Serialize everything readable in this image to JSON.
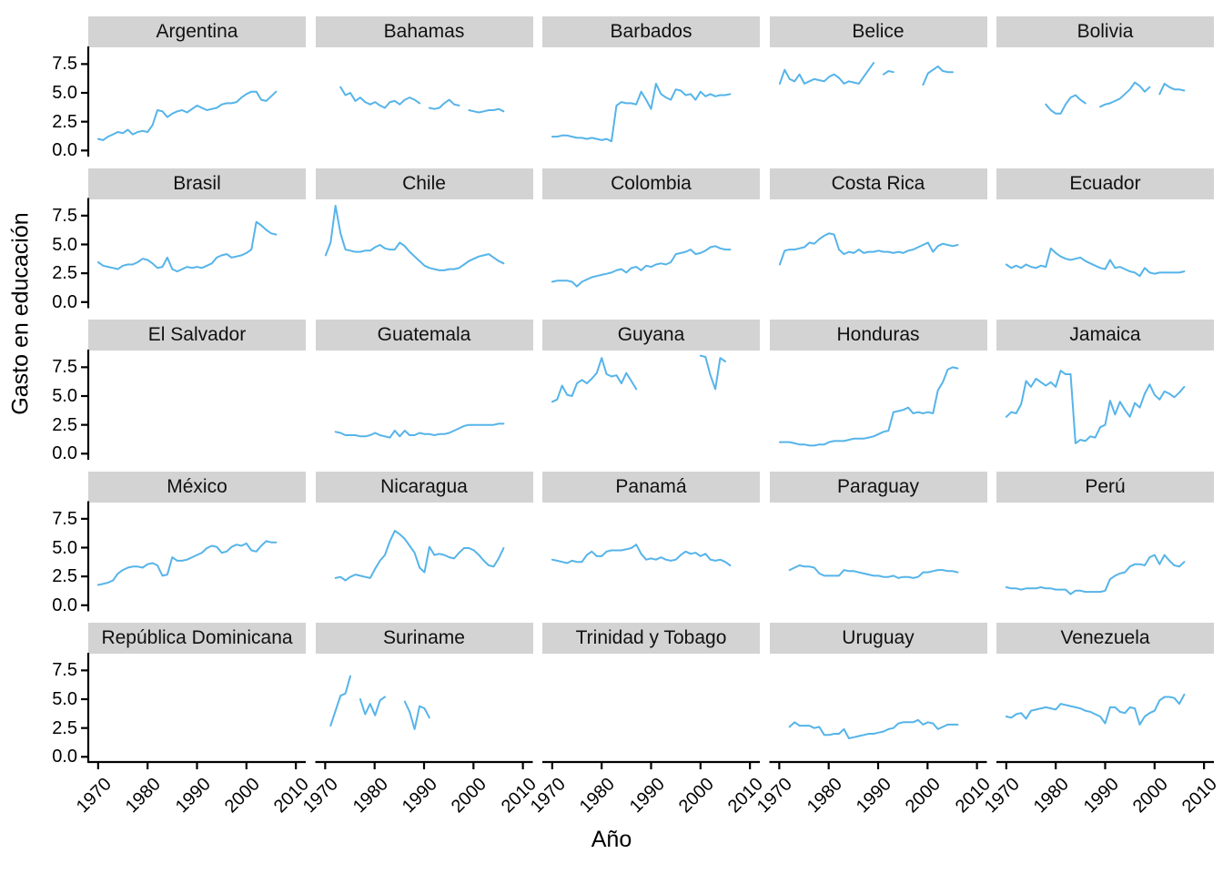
{
  "figure": {
    "y_axis_title": "Gasto en educación",
    "x_axis_title": "Año"
  },
  "chart_data": {
    "type": "line",
    "title": "",
    "xlabel": "Año",
    "ylabel": "Gasto en educación",
    "facet_layout": {
      "rows": 5,
      "cols": 5
    },
    "grid": false,
    "legend": "none",
    "xlim": [
      1968,
      2012
    ],
    "ylim": [
      -0.45,
      8.95
    ],
    "x_ticks": [
      1970,
      1980,
      1990,
      2000,
      2010
    ],
    "x_tick_labels": [
      "1970",
      "1980",
      "1990",
      "2000",
      "2010"
    ],
    "y_ticks": [
      0.0,
      2.5,
      5.0,
      7.5
    ],
    "y_tick_labels": [
      "0.0",
      "2.5",
      "5.0",
      "7.5"
    ],
    "line_color": "#56B4E9",
    "strip_bg": "#D3D3D3",
    "axis_color": "#000000",
    "facets": [
      {
        "label": "Argentina",
        "start_year": 1970,
        "values": [
          1.0,
          0.9,
          1.2,
          1.4,
          1.6,
          1.5,
          1.8,
          1.4,
          1.6,
          1.7,
          1.6,
          2.2,
          3.5,
          3.4,
          2.9,
          3.2,
          3.4,
          3.5,
          3.3,
          3.6,
          3.9,
          3.7,
          3.5,
          3.6,
          3.7,
          4.0,
          4.1,
          4.1,
          4.2,
          4.6,
          4.9,
          5.1,
          5.1,
          4.4,
          4.3,
          4.7,
          5.1
        ]
      },
      {
        "label": "Bahamas",
        "start_year": 1973,
        "values": [
          5.5,
          4.8,
          5.0,
          4.3,
          4.6,
          4.2,
          4.0,
          4.2,
          3.9,
          3.7,
          4.2,
          4.3,
          4.0,
          4.4,
          4.6,
          4.4,
          4.1,
          null,
          3.7,
          3.6,
          3.7,
          4.1,
          4.4,
          4.0,
          3.9,
          null,
          3.5,
          3.4,
          3.3,
          3.4,
          3.5,
          3.5,
          3.6,
          3.4
        ]
      },
      {
        "label": "Barbados",
        "start_year": 1970,
        "values": [
          1.2,
          1.2,
          1.3,
          1.3,
          1.2,
          1.1,
          1.1,
          1.0,
          1.1,
          1.0,
          0.9,
          1.0,
          0.8,
          3.9,
          4.2,
          4.1,
          4.1,
          4.0,
          5.1,
          4.4,
          3.6,
          5.8,
          4.9,
          4.6,
          4.4,
          5.3,
          5.2,
          4.8,
          4.9,
          4.4,
          5.1,
          4.7,
          4.9,
          4.7,
          4.8,
          4.8,
          4.9
        ]
      },
      {
        "label": "Belice",
        "start_year": 1970,
        "values": [
          5.8,
          7.0,
          6.2,
          6.0,
          6.6,
          5.8,
          6.0,
          6.2,
          6.1,
          6.0,
          6.4,
          6.6,
          6.3,
          5.8,
          6.0,
          5.9,
          5.8,
          6.4,
          7.0,
          7.6,
          null,
          6.6,
          6.9,
          6.8,
          null,
          null,
          null,
          null,
          null,
          5.7,
          6.7,
          7.0,
          7.3,
          6.9,
          6.8,
          6.8
        ]
      },
      {
        "label": "Bolivia",
        "start_year": 1978,
        "values": [
          4.0,
          3.5,
          3.2,
          3.2,
          4.0,
          4.6,
          4.8,
          4.4,
          4.1,
          null,
          null,
          3.8,
          4.0,
          4.1,
          4.3,
          4.5,
          4.9,
          5.3,
          5.9,
          5.6,
          5.1,
          5.5,
          null,
          4.9,
          5.8,
          5.5,
          5.3,
          5.3,
          5.2
        ]
      },
      {
        "label": "Brasil",
        "start_year": 1970,
        "values": [
          3.5,
          3.2,
          3.1,
          3.0,
          2.9,
          3.2,
          3.3,
          3.3,
          3.5,
          3.8,
          3.7,
          3.4,
          3.0,
          3.1,
          3.9,
          2.9,
          2.7,
          2.9,
          3.1,
          3.0,
          3.1,
          3.0,
          3.2,
          3.4,
          3.9,
          4.1,
          4.2,
          3.9,
          4.0,
          4.1,
          4.3,
          4.6,
          7.0,
          6.7,
          6.3,
          6.0,
          5.9
        ]
      },
      {
        "label": "Chile",
        "start_year": 1970,
        "values": [
          4.1,
          5.2,
          8.4,
          6.0,
          4.6,
          4.5,
          4.4,
          4.4,
          4.5,
          4.5,
          4.8,
          5.0,
          4.7,
          4.6,
          4.6,
          5.2,
          4.9,
          4.4,
          4.0,
          3.6,
          3.2,
          3.0,
          2.9,
          2.8,
          2.8,
          2.9,
          2.9,
          3.0,
          3.3,
          3.6,
          3.8,
          4.0,
          4.1,
          4.2,
          3.9,
          3.6,
          3.4
        ]
      },
      {
        "label": "Colombia",
        "start_year": 1970,
        "values": [
          1.8,
          1.9,
          1.9,
          1.9,
          1.8,
          1.4,
          1.8,
          2.0,
          2.2,
          2.3,
          2.4,
          2.5,
          2.6,
          2.8,
          2.9,
          2.6,
          3.0,
          3.1,
          2.8,
          3.2,
          3.1,
          3.3,
          3.4,
          3.3,
          3.5,
          4.2,
          4.3,
          4.4,
          4.6,
          4.2,
          4.3,
          4.5,
          4.8,
          4.9,
          4.7,
          4.6,
          4.6
        ]
      },
      {
        "label": "Costa Rica",
        "start_year": 1970,
        "values": [
          3.3,
          4.5,
          4.6,
          4.6,
          4.7,
          4.8,
          5.2,
          5.1,
          5.5,
          5.8,
          6.0,
          5.9,
          4.6,
          4.2,
          4.4,
          4.3,
          4.6,
          4.3,
          4.4,
          4.4,
          4.5,
          4.4,
          4.4,
          4.3,
          4.4,
          4.3,
          4.5,
          4.6,
          4.8,
          5.0,
          5.2,
          4.4,
          4.9,
          5.1,
          5.0,
          4.9,
          5.0
        ]
      },
      {
        "label": "Ecuador",
        "start_year": 1970,
        "values": [
          3.3,
          3.0,
          3.2,
          3.0,
          3.3,
          3.1,
          3.0,
          3.2,
          3.1,
          4.7,
          4.3,
          4.0,
          3.8,
          3.7,
          3.8,
          3.9,
          3.6,
          3.4,
          3.2,
          3.0,
          2.9,
          3.7,
          3.0,
          3.1,
          2.9,
          2.7,
          2.6,
          2.3,
          3.0,
          2.6,
          2.5,
          2.6,
          2.6,
          2.6,
          2.6,
          2.6,
          2.7
        ]
      },
      {
        "label": "El Salvador",
        "start_year": null,
        "values": []
      },
      {
        "label": "Guatemala",
        "start_year": 1972,
        "values": [
          1.9,
          1.8,
          1.6,
          1.6,
          1.6,
          1.5,
          1.5,
          1.6,
          1.8,
          1.6,
          1.5,
          1.4,
          2.0,
          1.5,
          2.0,
          1.6,
          1.6,
          1.8,
          1.7,
          1.7,
          1.6,
          1.7,
          1.7,
          1.8,
          2.0,
          2.2,
          2.4,
          2.5,
          2.5,
          2.5,
          2.5,
          2.5,
          2.5,
          2.6,
          2.6
        ]
      },
      {
        "label": "Guyana",
        "start_year": 1970,
        "values": [
          4.5,
          4.7,
          5.9,
          5.1,
          5.0,
          6.1,
          6.4,
          6.1,
          6.5,
          7.0,
          8.3,
          6.9,
          6.7,
          6.8,
          6.1,
          7.0,
          6.3,
          5.6,
          null,
          null,
          null,
          null,
          null,
          null,
          null,
          null,
          null,
          null,
          null,
          null,
          8.5,
          8.4,
          6.8,
          5.6,
          8.3,
          8.0
        ]
      },
      {
        "label": "Honduras",
        "start_year": 1970,
        "values": [
          1.0,
          1.0,
          1.0,
          0.9,
          0.8,
          0.8,
          0.7,
          0.7,
          0.8,
          0.8,
          1.0,
          1.1,
          1.1,
          1.1,
          1.2,
          1.3,
          1.3,
          1.3,
          1.4,
          1.5,
          1.7,
          1.9,
          2.0,
          3.6,
          3.7,
          3.8,
          4.0,
          3.5,
          3.6,
          3.5,
          3.6,
          3.5,
          5.5,
          6.2,
          7.3,
          7.5,
          7.4
        ]
      },
      {
        "label": "Jamaica",
        "start_year": 1970,
        "values": [
          3.2,
          3.6,
          3.5,
          4.3,
          6.3,
          5.8,
          6.5,
          6.2,
          5.9,
          6.2,
          5.8,
          7.2,
          6.9,
          6.9,
          0.9,
          1.2,
          1.1,
          1.5,
          1.4,
          2.3,
          2.5,
          4.6,
          3.4,
          4.5,
          3.8,
          3.2,
          4.4,
          4.0,
          5.2,
          6.0,
          5.1,
          4.7,
          5.4,
          5.2,
          4.9,
          5.3,
          5.8
        ]
      },
      {
        "label": "México",
        "start_year": 1970,
        "values": [
          1.8,
          1.9,
          2.0,
          2.2,
          2.8,
          3.1,
          3.3,
          3.4,
          3.4,
          3.3,
          3.6,
          3.7,
          3.5,
          2.6,
          2.7,
          4.2,
          3.9,
          3.9,
          4.0,
          4.2,
          4.4,
          4.6,
          5.0,
          5.2,
          5.1,
          4.6,
          4.7,
          5.1,
          5.3,
          5.2,
          5.4,
          4.8,
          4.7,
          5.2,
          5.6,
          5.5,
          5.5
        ]
      },
      {
        "label": "Nicaragua",
        "start_year": 1972,
        "values": [
          2.4,
          2.5,
          2.2,
          2.5,
          2.7,
          2.6,
          2.5,
          2.4,
          3.2,
          3.9,
          4.4,
          5.6,
          6.5,
          6.2,
          5.8,
          5.2,
          4.6,
          3.3,
          2.9,
          5.1,
          4.4,
          4.5,
          4.4,
          4.2,
          4.1,
          4.6,
          5.0,
          5.0,
          4.8,
          4.4,
          3.9,
          3.5,
          3.4,
          4.1,
          5.0
        ]
      },
      {
        "label": "Panamá",
        "start_year": 1970,
        "values": [
          4.0,
          3.9,
          3.8,
          3.7,
          3.9,
          3.8,
          3.8,
          4.4,
          4.7,
          4.3,
          4.3,
          4.7,
          4.8,
          4.8,
          4.8,
          4.9,
          5.0,
          5.3,
          4.5,
          4.0,
          4.1,
          4.0,
          4.2,
          4.0,
          3.9,
          4.0,
          4.4,
          4.7,
          4.5,
          4.6,
          4.3,
          4.5,
          4.0,
          3.9,
          4.0,
          3.8,
          3.5
        ]
      },
      {
        "label": "Paraguay",
        "start_year": 1972,
        "values": [
          3.1,
          3.3,
          3.5,
          3.4,
          3.4,
          3.3,
          2.8,
          2.6,
          2.6,
          2.6,
          2.6,
          3.1,
          3.0,
          3.0,
          2.9,
          2.8,
          2.7,
          2.6,
          2.6,
          2.5,
          2.5,
          2.6,
          2.4,
          2.5,
          2.5,
          2.4,
          2.5,
          2.9,
          2.9,
          3.0,
          3.1,
          3.1,
          3.0,
          3.0,
          2.9
        ]
      },
      {
        "label": "Perú",
        "start_year": 1970,
        "values": [
          1.6,
          1.5,
          1.5,
          1.4,
          1.5,
          1.5,
          1.5,
          1.6,
          1.5,
          1.5,
          1.4,
          1.4,
          1.4,
          1.0,
          1.3,
          1.3,
          1.2,
          1.2,
          1.2,
          1.2,
          1.3,
          2.3,
          2.6,
          2.8,
          2.9,
          3.4,
          3.6,
          3.6,
          3.5,
          4.2,
          4.4,
          3.6,
          4.4,
          3.9,
          3.5,
          3.4,
          3.8
        ]
      },
      {
        "label": "República Dominicana",
        "start_year": null,
        "values": []
      },
      {
        "label": "Suriname",
        "start_year": 1971,
        "values": [
          2.7,
          4.0,
          5.3,
          5.5,
          7.0,
          null,
          5.0,
          3.7,
          4.6,
          3.6,
          4.9,
          5.2,
          null,
          null,
          null,
          4.8,
          3.9,
          2.4,
          4.4,
          4.2,
          3.4
        ]
      },
      {
        "label": "Trinidad y Tobago",
        "start_year": null,
        "values": []
      },
      {
        "label": "Uruguay",
        "start_year": 1972,
        "values": [
          2.6,
          3.0,
          2.7,
          2.7,
          2.7,
          2.5,
          2.6,
          1.9,
          1.9,
          2.0,
          2.0,
          2.4,
          1.6,
          1.7,
          1.8,
          1.9,
          2.0,
          2.0,
          2.1,
          2.2,
          2.4,
          2.5,
          2.9,
          3.0,
          3.0,
          3.0,
          3.2,
          2.8,
          3.0,
          2.9,
          2.4,
          2.6,
          2.8,
          2.8,
          2.8
        ]
      },
      {
        "label": "Venezuela",
        "start_year": 1970,
        "values": [
          3.5,
          3.4,
          3.7,
          3.8,
          3.3,
          4.0,
          4.1,
          4.2,
          4.3,
          4.2,
          4.1,
          4.6,
          4.5,
          4.4,
          4.3,
          4.2,
          4.0,
          3.9,
          3.7,
          3.5,
          2.9,
          4.3,
          4.3,
          3.9,
          3.8,
          4.3,
          4.2,
          2.8,
          3.5,
          3.8,
          4.0,
          4.9,
          5.2,
          5.2,
          5.1,
          4.6,
          5.4
        ]
      }
    ]
  }
}
